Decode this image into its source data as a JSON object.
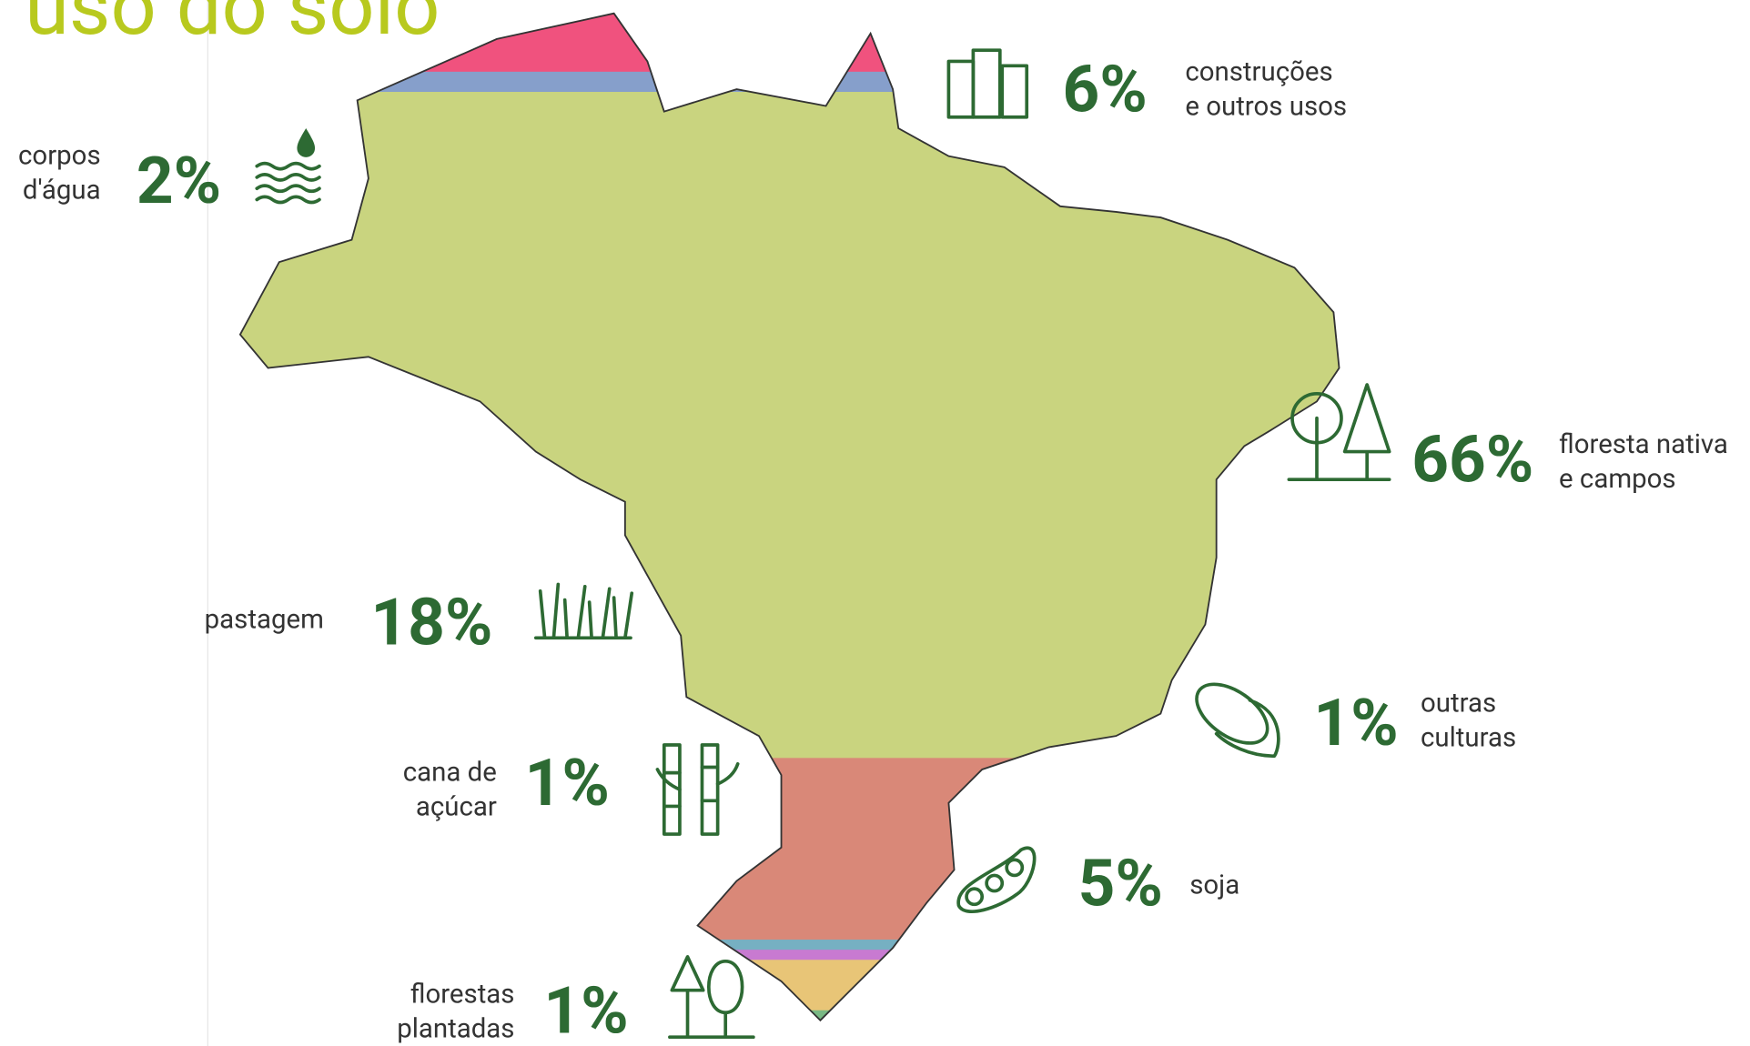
{
  "chart_data": {
    "type": "bandmap",
    "title": "uso do solo",
    "items": [
      {
        "label": [
          "construções",
          "e outros usos"
        ],
        "value": 6,
        "value_label": "6%",
        "color": "#f0527e"
      },
      {
        "label": [
          "corpos",
          "d'água"
        ],
        "value": 2,
        "value_label": "2%",
        "color": "#869fcb"
      },
      {
        "label": [
          "floresta nativa",
          "e campos"
        ],
        "value": 66,
        "value_label": "66%",
        "color": "#c9d47f"
      },
      {
        "label": [
          "pastagem"
        ],
        "value": 18,
        "value_label": "18%",
        "color": "#d98878"
      },
      {
        "label": [
          "outras",
          "culturas"
        ],
        "value": 1,
        "value_label": "1%",
        "color": "#76b0c2"
      },
      {
        "label": [
          "cana de",
          "açúcar"
        ],
        "value": 1,
        "value_label": "1%",
        "color": "#c87ad1"
      },
      {
        "label": [
          "soja"
        ],
        "value": 5,
        "value_label": "5%",
        "color": "#e8c577"
      },
      {
        "label": [
          "florestas",
          "plantadas"
        ],
        "value": 1,
        "value_label": "1%",
        "color": "#79b884"
      }
    ]
  }
}
